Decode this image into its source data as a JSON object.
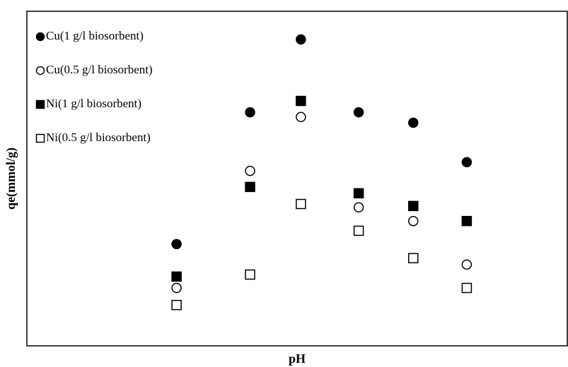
{
  "chart_data": {
    "type": "scatter",
    "xlabel": "pH",
    "ylabel": "qe(mmol/g)",
    "x": [
      27.7,
      41.3,
      50.7,
      61.4,
      71.5,
      81.4
    ],
    "xlim": [
      0,
      100
    ],
    "ylim": [
      0,
      100
    ],
    "legend": "upper left",
    "series": [
      {
        "name": "Cu(1 g/l biosorbent)",
        "color": "#000000",
        "marker": "circle",
        "filled": true,
        "values": [
          30.4,
          69.8,
          91.6,
          69.8,
          66.7,
          54.9
        ]
      },
      {
        "name": "Cu(0.5 g/l biosorbent)",
        "color": "#000000",
        "marker": "circle",
        "filled": false,
        "values": [
          17.3,
          52.3,
          68.4,
          41.4,
          37.3,
          24.3
        ]
      },
      {
        "name": "Ni(1 g/l biosorbent)",
        "color": "#000000",
        "marker": "square",
        "filled": true,
        "values": [
          20.7,
          47.5,
          73.2,
          45.6,
          41.8,
          37.3
        ]
      },
      {
        "name": "Ni(0.5 g/l biosorbent)",
        "color": "#000000",
        "marker": "square",
        "filled": false,
        "values": [
          12.2,
          21.3,
          42.4,
          34.4,
          26.2,
          17.3
        ]
      }
    ]
  }
}
